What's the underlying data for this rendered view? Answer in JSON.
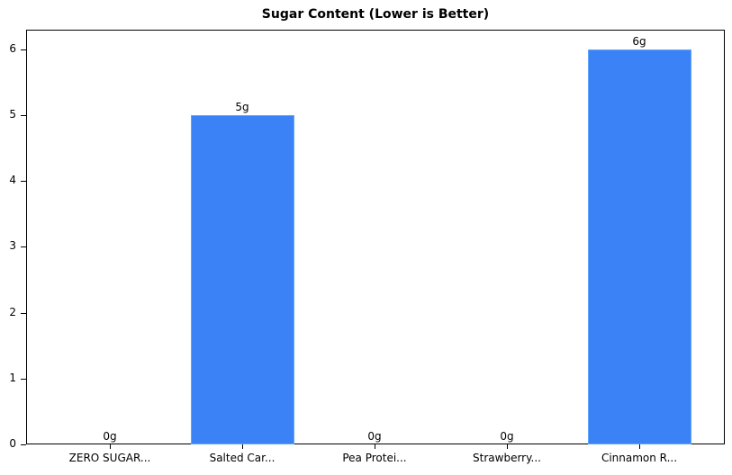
{
  "chart_data": {
    "type": "bar",
    "title": "Sugar Content (Lower is Better)",
    "xlabel": "",
    "ylabel": "",
    "categories": [
      "ZERO SUGAR...",
      "Salted Car...",
      "Pea Protei...",
      "Strawberry...",
      "Cinnamon R..."
    ],
    "values": [
      0,
      5,
      0,
      0,
      6
    ],
    "data_labels": [
      "0g",
      "5g",
      "0g",
      "0g",
      "6g"
    ],
    "ylim": [
      0,
      6.3
    ],
    "yticks": [
      0,
      1,
      2,
      3,
      4,
      5,
      6
    ],
    "grid": false,
    "legend": null,
    "bar_color": "#3b82f6"
  }
}
